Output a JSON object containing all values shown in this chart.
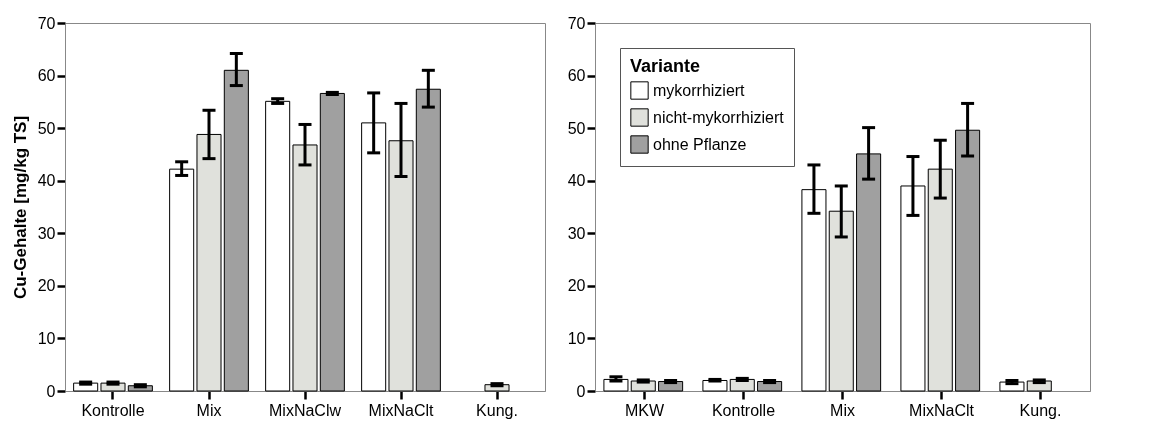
{
  "chart_data": [
    {
      "type": "bar",
      "ylabel": "Cu-Gehalte [mg/kg TS]",
      "categories": [
        "Kontrolle",
        "Mix",
        "MixNaClw",
        "MixNaClt",
        "Kung."
      ],
      "ylim": [
        0,
        70
      ],
      "yticks": [
        0,
        10,
        20,
        30,
        40,
        50,
        60,
        70
      ],
      "grid": false,
      "legend": false,
      "series": [
        {
          "color": "#ffffff",
          "values": [
            1.5,
            42.2,
            55.1,
            51.0,
            null
          ],
          "errors": [
            [
              1.3,
              1.7
            ],
            [
              41.0,
              43.6
            ],
            [
              54.7,
              55.6
            ],
            [
              45.3,
              56.7
            ],
            null
          ]
        },
        {
          "color": "#e0e1dc",
          "values": [
            1.5,
            48.8,
            46.8,
            47.6,
            1.2
          ],
          "errors": [
            [
              1.3,
              1.7
            ],
            [
              44.2,
              53.4
            ],
            [
              43.0,
              50.7
            ],
            [
              40.8,
              54.7
            ],
            [
              1.0,
              1.4
            ]
          ]
        },
        {
          "color": "#a0a0a0",
          "values": [
            1.0,
            61.0,
            56.6,
            57.4,
            null
          ],
          "errors": [
            [
              0.8,
              1.2
            ],
            [
              58.1,
              64.2
            ],
            [
              56.4,
              56.8
            ],
            [
              54.0,
              61.0
            ],
            null
          ]
        }
      ]
    },
    {
      "type": "bar",
      "legend_title": "Variante",
      "categories": [
        "MKW",
        "Kontrolle",
        "Mix",
        "MixNaClt",
        "Kung."
      ],
      "ylim": [
        0,
        70
      ],
      "yticks": [
        0,
        10,
        20,
        30,
        40,
        50,
        60,
        70
      ],
      "grid": false,
      "legend": "top left",
      "series": [
        {
          "name": "mykorrhiziert",
          "color": "#ffffff",
          "values": [
            2.2,
            2.0,
            38.3,
            39.0,
            1.7
          ],
          "errors": [
            [
              1.9,
              2.7
            ],
            [
              1.9,
              2.2
            ],
            [
              33.8,
              43.0
            ],
            [
              33.4,
              44.6
            ],
            [
              1.4,
              2.0
            ]
          ]
        },
        {
          "name": "nicht-mykorrhiziert",
          "color": "#e0e1dc",
          "values": [
            1.9,
            2.2,
            34.2,
            42.2,
            1.9
          ],
          "errors": [
            [
              1.7,
              2.1
            ],
            [
              2.0,
              2.4
            ],
            [
              29.3,
              39.0
            ],
            [
              36.7,
              47.7
            ],
            [
              1.6,
              2.1
            ]
          ]
        },
        {
          "name": "ohne Pflanze",
          "color": "#a0a0a0",
          "values": [
            1.8,
            1.8,
            45.1,
            49.6,
            null
          ],
          "errors": [
            [
              1.6,
              2.0
            ],
            [
              1.6,
              2.0
            ],
            [
              40.3,
              50.1
            ],
            [
              44.7,
              54.7
            ],
            null
          ]
        }
      ]
    }
  ]
}
